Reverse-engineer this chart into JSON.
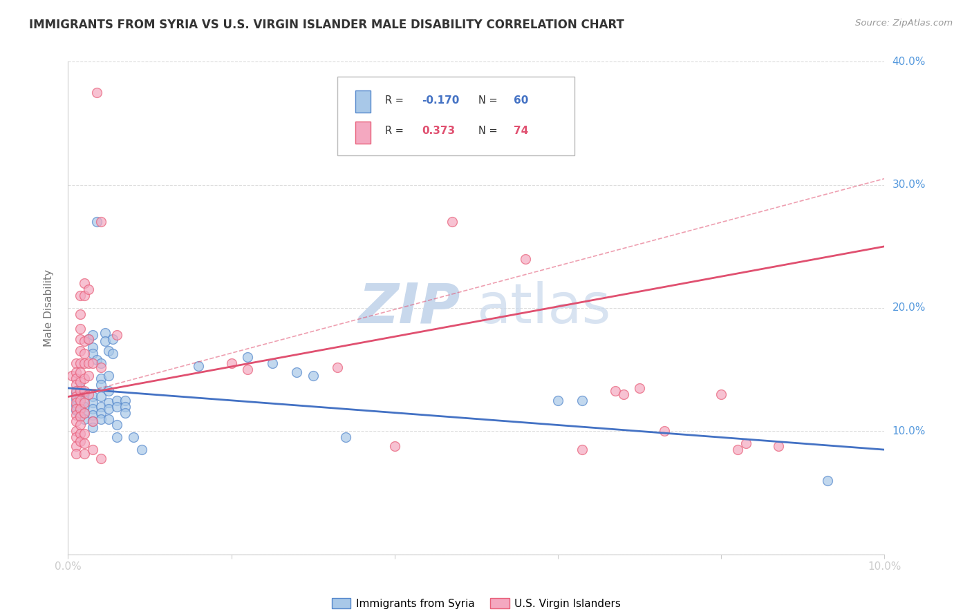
{
  "title": "IMMIGRANTS FROM SYRIA VS U.S. VIRGIN ISLANDER MALE DISABILITY CORRELATION CHART",
  "source": "Source: ZipAtlas.com",
  "ylabel": "Male Disability",
  "watermark": "ZIPatlas",
  "xlim": [
    0.0,
    0.1
  ],
  "ylim": [
    0.0,
    0.4
  ],
  "yticks": [
    0.0,
    0.1,
    0.2,
    0.3,
    0.4
  ],
  "ytick_labels": [
    "",
    "10.0%",
    "20.0%",
    "30.0%",
    "40.0%"
  ],
  "xticks": [
    0.0,
    0.02,
    0.04,
    0.06,
    0.08,
    0.1
  ],
  "xtick_labels": [
    "0.0%",
    "",
    "",
    "",
    "",
    "10.0%"
  ],
  "legend": {
    "blue_r": "-0.170",
    "blue_n": "60",
    "pink_r": "0.373",
    "pink_n": "74",
    "blue_label": "Immigrants from Syria",
    "pink_label": "U.S. Virgin Islanders"
  },
  "blue_scatter": [
    [
      0.001,
      0.131
    ],
    [
      0.001,
      0.126
    ],
    [
      0.001,
      0.121
    ],
    [
      0.001,
      0.117
    ],
    [
      0.0015,
      0.135
    ],
    [
      0.0015,
      0.128
    ],
    [
      0.0015,
      0.122
    ],
    [
      0.0015,
      0.117
    ],
    [
      0.0015,
      0.112
    ],
    [
      0.002,
      0.13
    ],
    [
      0.002,
      0.125
    ],
    [
      0.002,
      0.12
    ],
    [
      0.002,
      0.115
    ],
    [
      0.002,
      0.11
    ],
    [
      0.0025,
      0.175
    ],
    [
      0.003,
      0.178
    ],
    [
      0.003,
      0.168
    ],
    [
      0.003,
      0.163
    ],
    [
      0.003,
      0.128
    ],
    [
      0.003,
      0.123
    ],
    [
      0.003,
      0.118
    ],
    [
      0.003,
      0.113
    ],
    [
      0.003,
      0.108
    ],
    [
      0.003,
      0.103
    ],
    [
      0.0035,
      0.27
    ],
    [
      0.0035,
      0.158
    ],
    [
      0.004,
      0.155
    ],
    [
      0.004,
      0.143
    ],
    [
      0.004,
      0.138
    ],
    [
      0.004,
      0.128
    ],
    [
      0.004,
      0.12
    ],
    [
      0.004,
      0.115
    ],
    [
      0.004,
      0.11
    ],
    [
      0.0045,
      0.18
    ],
    [
      0.0045,
      0.173
    ],
    [
      0.005,
      0.165
    ],
    [
      0.005,
      0.145
    ],
    [
      0.005,
      0.133
    ],
    [
      0.005,
      0.123
    ],
    [
      0.005,
      0.118
    ],
    [
      0.005,
      0.11
    ],
    [
      0.0055,
      0.175
    ],
    [
      0.0055,
      0.163
    ],
    [
      0.006,
      0.125
    ],
    [
      0.006,
      0.12
    ],
    [
      0.006,
      0.105
    ],
    [
      0.006,
      0.095
    ],
    [
      0.007,
      0.125
    ],
    [
      0.007,
      0.12
    ],
    [
      0.007,
      0.115
    ],
    [
      0.008,
      0.095
    ],
    [
      0.009,
      0.085
    ],
    [
      0.016,
      0.153
    ],
    [
      0.022,
      0.16
    ],
    [
      0.025,
      0.155
    ],
    [
      0.028,
      0.148
    ],
    [
      0.03,
      0.145
    ],
    [
      0.034,
      0.095
    ],
    [
      0.06,
      0.125
    ],
    [
      0.063,
      0.125
    ],
    [
      0.093,
      0.06
    ]
  ],
  "pink_scatter": [
    [
      0.0005,
      0.145
    ],
    [
      0.001,
      0.155
    ],
    [
      0.001,
      0.148
    ],
    [
      0.001,
      0.143
    ],
    [
      0.001,
      0.138
    ],
    [
      0.001,
      0.133
    ],
    [
      0.001,
      0.128
    ],
    [
      0.001,
      0.123
    ],
    [
      0.001,
      0.118
    ],
    [
      0.001,
      0.113
    ],
    [
      0.001,
      0.108
    ],
    [
      0.001,
      0.1
    ],
    [
      0.001,
      0.095
    ],
    [
      0.001,
      0.088
    ],
    [
      0.001,
      0.082
    ],
    [
      0.0015,
      0.21
    ],
    [
      0.0015,
      0.195
    ],
    [
      0.0015,
      0.183
    ],
    [
      0.0015,
      0.175
    ],
    [
      0.0015,
      0.165
    ],
    [
      0.0015,
      0.155
    ],
    [
      0.0015,
      0.148
    ],
    [
      0.0015,
      0.14
    ],
    [
      0.0015,
      0.133
    ],
    [
      0.0015,
      0.125
    ],
    [
      0.0015,
      0.118
    ],
    [
      0.0015,
      0.112
    ],
    [
      0.0015,
      0.105
    ],
    [
      0.0015,
      0.098
    ],
    [
      0.0015,
      0.092
    ],
    [
      0.002,
      0.22
    ],
    [
      0.002,
      0.21
    ],
    [
      0.002,
      0.173
    ],
    [
      0.002,
      0.163
    ],
    [
      0.002,
      0.155
    ],
    [
      0.002,
      0.143
    ],
    [
      0.002,
      0.133
    ],
    [
      0.002,
      0.123
    ],
    [
      0.002,
      0.115
    ],
    [
      0.002,
      0.098
    ],
    [
      0.002,
      0.09
    ],
    [
      0.002,
      0.082
    ],
    [
      0.0025,
      0.215
    ],
    [
      0.0025,
      0.175
    ],
    [
      0.0025,
      0.155
    ],
    [
      0.0025,
      0.145
    ],
    [
      0.0025,
      0.13
    ],
    [
      0.003,
      0.155
    ],
    [
      0.003,
      0.108
    ],
    [
      0.003,
      0.085
    ],
    [
      0.0035,
      0.375
    ],
    [
      0.004,
      0.27
    ],
    [
      0.004,
      0.152
    ],
    [
      0.004,
      0.078
    ],
    [
      0.006,
      0.178
    ],
    [
      0.02,
      0.155
    ],
    [
      0.022,
      0.15
    ],
    [
      0.033,
      0.152
    ],
    [
      0.04,
      0.088
    ],
    [
      0.047,
      0.27
    ],
    [
      0.056,
      0.24
    ],
    [
      0.063,
      0.085
    ],
    [
      0.067,
      0.133
    ],
    [
      0.068,
      0.13
    ],
    [
      0.07,
      0.135
    ],
    [
      0.073,
      0.1
    ],
    [
      0.08,
      0.13
    ],
    [
      0.082,
      0.085
    ],
    [
      0.083,
      0.09
    ],
    [
      0.087,
      0.088
    ]
  ],
  "blue_line": {
    "x0": 0.0,
    "y0": 0.135,
    "x1": 0.1,
    "y1": 0.085
  },
  "pink_line_solid": {
    "x0": 0.0,
    "y0": 0.128,
    "x1": 0.1,
    "y1": 0.25
  },
  "pink_line_dashed": {
    "x0": 0.0,
    "y0": 0.128,
    "x1": 0.1,
    "y1": 0.305
  },
  "colors": {
    "blue": "#A8C8E8",
    "pink": "#F4A8C0",
    "blue_edge": "#5588CC",
    "pink_edge": "#E8607A",
    "blue_line": "#4472C4",
    "pink_line": "#E05070",
    "grid": "#DDDDDD",
    "title": "#333333",
    "axis_right_labels": "#5599DD",
    "watermark": "#C8D8EC",
    "legend_border": "#CCCCCC",
    "legend_text": "#333333"
  }
}
